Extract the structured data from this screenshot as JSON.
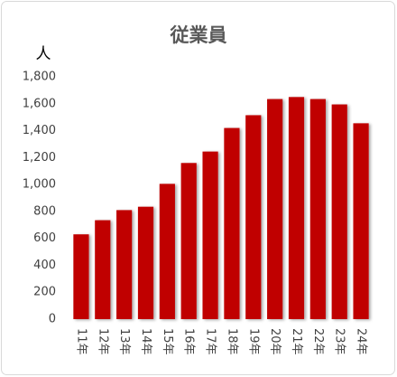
{
  "chart_data": {
    "type": "bar",
    "title": "従業員",
    "y_label": "人",
    "categories": [
      "11年",
      "12年",
      "13年",
      "14年",
      "15年",
      "16年",
      "17年",
      "18年",
      "19年",
      "20年",
      "21年",
      "22年",
      "23年",
      "24年"
    ],
    "values": [
      630,
      735,
      810,
      835,
      1005,
      1160,
      1245,
      1420,
      1515,
      1635,
      1650,
      1635,
      1595,
      1455
    ],
    "color": "#c00000",
    "ylim": [
      0,
      1800
    ],
    "yticks": [
      0,
      200,
      400,
      600,
      800,
      {
        "value": 1000,
        "label": "1,000"
      },
      {
        "value": 1200,
        "label": "1,200"
      },
      {
        "value": 1400,
        "label": "1,400"
      },
      {
        "value": 1600,
        "label": "1,600"
      },
      {
        "value": 1800,
        "label": "1,800"
      }
    ],
    "grid": false
  }
}
